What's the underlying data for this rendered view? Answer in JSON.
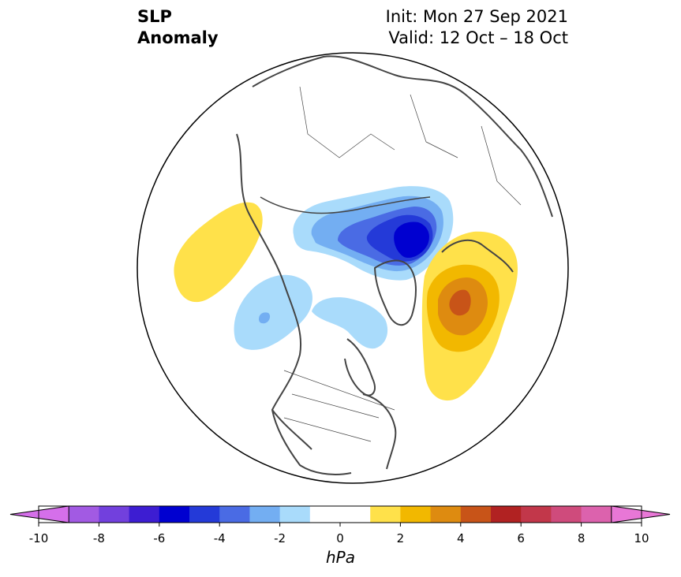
{
  "title": {
    "line1": "SLP",
    "line2": "Anomaly",
    "init": "Init: Mon 27 Sep 2021",
    "valid": "Valid: 12 Oct – 18 Oct"
  },
  "colorbar": {
    "unit": "hPa",
    "min": -10,
    "max": 10,
    "ticks": [
      -10,
      -8,
      -6,
      -4,
      -2,
      0,
      2,
      4,
      6,
      8,
      10
    ],
    "colors": [
      "#d56fea",
      "#a25ae3",
      "#7240dd",
      "#3d1dd2",
      "#0000d0",
      "#243ad8",
      "#4a6be4",
      "#73aef2",
      "#a9dbfb",
      "#ffffff",
      "#ffffff",
      "#ffe14a",
      "#f2b800",
      "#de8b10",
      "#c85418",
      "#b12222",
      "#c2374a",
      "#cf4b7c",
      "#dc62ad",
      "#e877d6"
    ]
  },
  "map": {
    "projection": "north-polar-stereographic",
    "background": "#ffffff",
    "coastline_color": "#444444"
  }
}
